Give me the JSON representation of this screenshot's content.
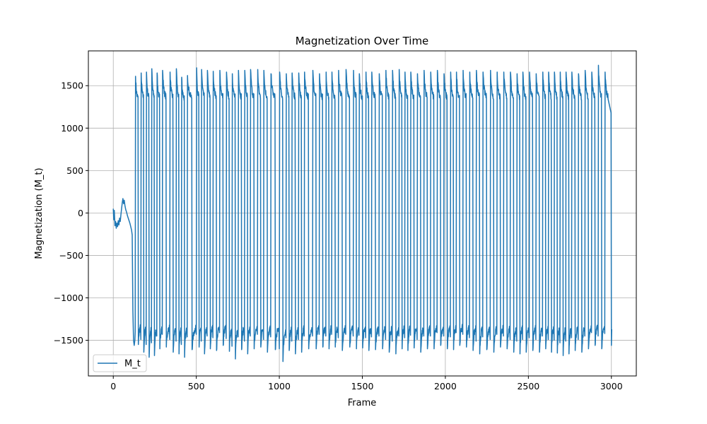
{
  "chart_data": {
    "type": "line",
    "title": "Magnetization Over Time",
    "xlabel": "Frame",
    "ylabel": "Magnetization (M_t)",
    "xlim": [
      -150,
      3150
    ],
    "ylim": [
      -1920,
      1910
    ],
    "xticks": [
      0,
      500,
      1000,
      1500,
      2000,
      2500,
      3000
    ],
    "xtick_labels": [
      "0",
      "500",
      "1000",
      "1500",
      "2000",
      "2500",
      "3000"
    ],
    "yticks": [
      -1500,
      -1000,
      -500,
      0,
      500,
      1000,
      1500
    ],
    "ytick_labels": [
      "−1500",
      "−1000",
      "−500",
      "0",
      "500",
      "1000",
      "1500"
    ],
    "grid": true,
    "legend_position": "lower-left",
    "series": [
      {
        "name": "M_t",
        "color": "#1f77b4",
        "segments": [
          {
            "kind": "points",
            "x": [
              0,
              3,
              6,
              10,
              14,
              18,
              22,
              26,
              30,
              34,
              38,
              42,
              46,
              50,
              54,
              58,
              62,
              66,
              70,
              75,
              80,
              85,
              90,
              95,
              100,
              105,
              110,
              114,
              118,
              122,
              126,
              130
            ],
            "y": [
              50,
              -80,
              30,
              -150,
              -100,
              -180,
              -120,
              -160,
              -90,
              -140,
              -60,
              -100,
              -20,
              50,
              120,
              170,
              110,
              150,
              90,
              40,
              10,
              -30,
              -60,
              -90,
              -120,
              -160,
              -200,
              -260,
              -1150,
              -1500,
              -1560,
              -1500
            ]
          },
          {
            "kind": "cycles",
            "up_frames": [
              132,
              166,
              198,
              230,
              262,
              295,
              340,
              378,
              410,
              445,
              500,
              530,
              565,
              600,
              640,
              680,
              715,
              752,
              790,
              825,
              868,
              905,
              948,
              1000,
              1040,
              1075,
              1115,
              1150,
              1200,
              1240,
              1280,
              1315,
              1355,
              1400,
              1445,
              1480,
              1520,
              1555,
              1600,
              1640,
              1680,
              1720,
              1755,
              1790,
              1830,
              1870,
              1910,
              1950,
              1990,
              2030,
              2065,
              2105,
              2145,
              2185,
              2225,
              2270,
              2310,
              2350,
              2390,
              2430,
              2465,
              2505,
              2545,
              2585,
              2620,
              2655,
              2690,
              2725,
              2760,
              2800,
              2840,
              2880,
              2920,
              2960
            ],
            "peaks": [
              1610,
              1650,
              1660,
              1700,
              1650,
              1680,
              1660,
              1700,
              1600,
              1620,
              1710,
              1690,
              1680,
              1670,
              1680,
              1660,
              1640,
              1680,
              1680,
              1690,
              1690,
              1680,
              1640,
              1660,
              1640,
              1650,
              1650,
              1660,
              1680,
              1640,
              1660,
              1660,
              1680,
              1690,
              1680,
              1640,
              1660,
              1660,
              1640,
              1680,
              1680,
              1690,
              1660,
              1660,
              1640,
              1680,
              1660,
              1680,
              1640,
              1660,
              1660,
              1680,
              1660,
              1680,
              1660,
              1680,
              1660,
              1660,
              1660,
              1640,
              1660,
              1660,
              1640,
              1660,
              1660,
              1660,
              1660,
              1660,
              1660,
              1640,
              1680,
              1660,
              1740,
              1660
            ],
            "troughs": [
              -1550,
              -1640,
              -1700,
              -1680,
              -1600,
              -1580,
              -1640,
              -1660,
              -1700,
              -1610,
              -1580,
              -1660,
              -1600,
              -1620,
              -1560,
              -1630,
              -1720,
              -1610,
              -1660,
              -1600,
              -1580,
              -1640,
              -1610,
              -1750,
              -1620,
              -1660,
              -1640,
              -1600,
              -1600,
              -1580,
              -1600,
              -1580,
              -1620,
              -1580,
              -1600,
              -1590,
              -1620,
              -1610,
              -1600,
              -1640,
              -1660,
              -1600,
              -1620,
              -1590,
              -1640,
              -1600,
              -1600,
              -1560,
              -1600,
              -1610,
              -1560,
              -1580,
              -1620,
              -1660,
              -1610,
              -1640,
              -1580,
              -1600,
              -1640,
              -1660,
              -1640,
              -1620,
              -1640,
              -1600,
              -1640,
              -1650,
              -1680,
              -1660,
              -1620,
              -1640,
              -1600,
              -1560,
              -1600,
              -1570
            ],
            "end_frame": 3000,
            "end_value": -1370
          }
        ]
      }
    ]
  }
}
